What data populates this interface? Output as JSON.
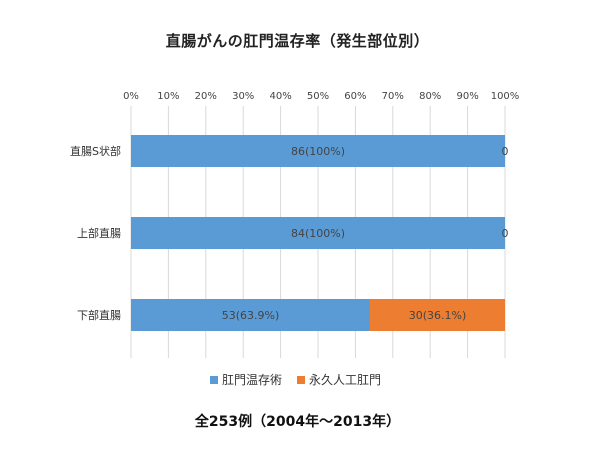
{
  "chart_data": {
    "type": "bar",
    "orientation": "horizontal",
    "stacked": true,
    "title": "直腸がんの肛門温存率（発生部位別）",
    "caption": "全253例（2004年～2013年）",
    "categories": [
      "直腸S状部",
      "上部直腸",
      "下部直腸"
    ],
    "xlim": [
      0,
      100
    ],
    "x_ticks": [
      "0%",
      "10%",
      "20%",
      "30%",
      "40%",
      "50%",
      "60%",
      "70%",
      "80%",
      "90%",
      "100%"
    ],
    "grid": true,
    "legend_position": "bottom",
    "series": [
      {
        "name": "肛門温存術",
        "color": "#5b9bd5",
        "values": [
          100,
          100,
          63.9
        ],
        "labels": [
          "86(100%)",
          "84(100%)",
          "53(63.9%)"
        ]
      },
      {
        "name": "永久人工肛門",
        "color": "#ed7d31",
        "values": [
          0,
          0,
          36.1
        ],
        "labels": [
          "0",
          "0",
          "30(36.1%)"
        ]
      }
    ]
  }
}
